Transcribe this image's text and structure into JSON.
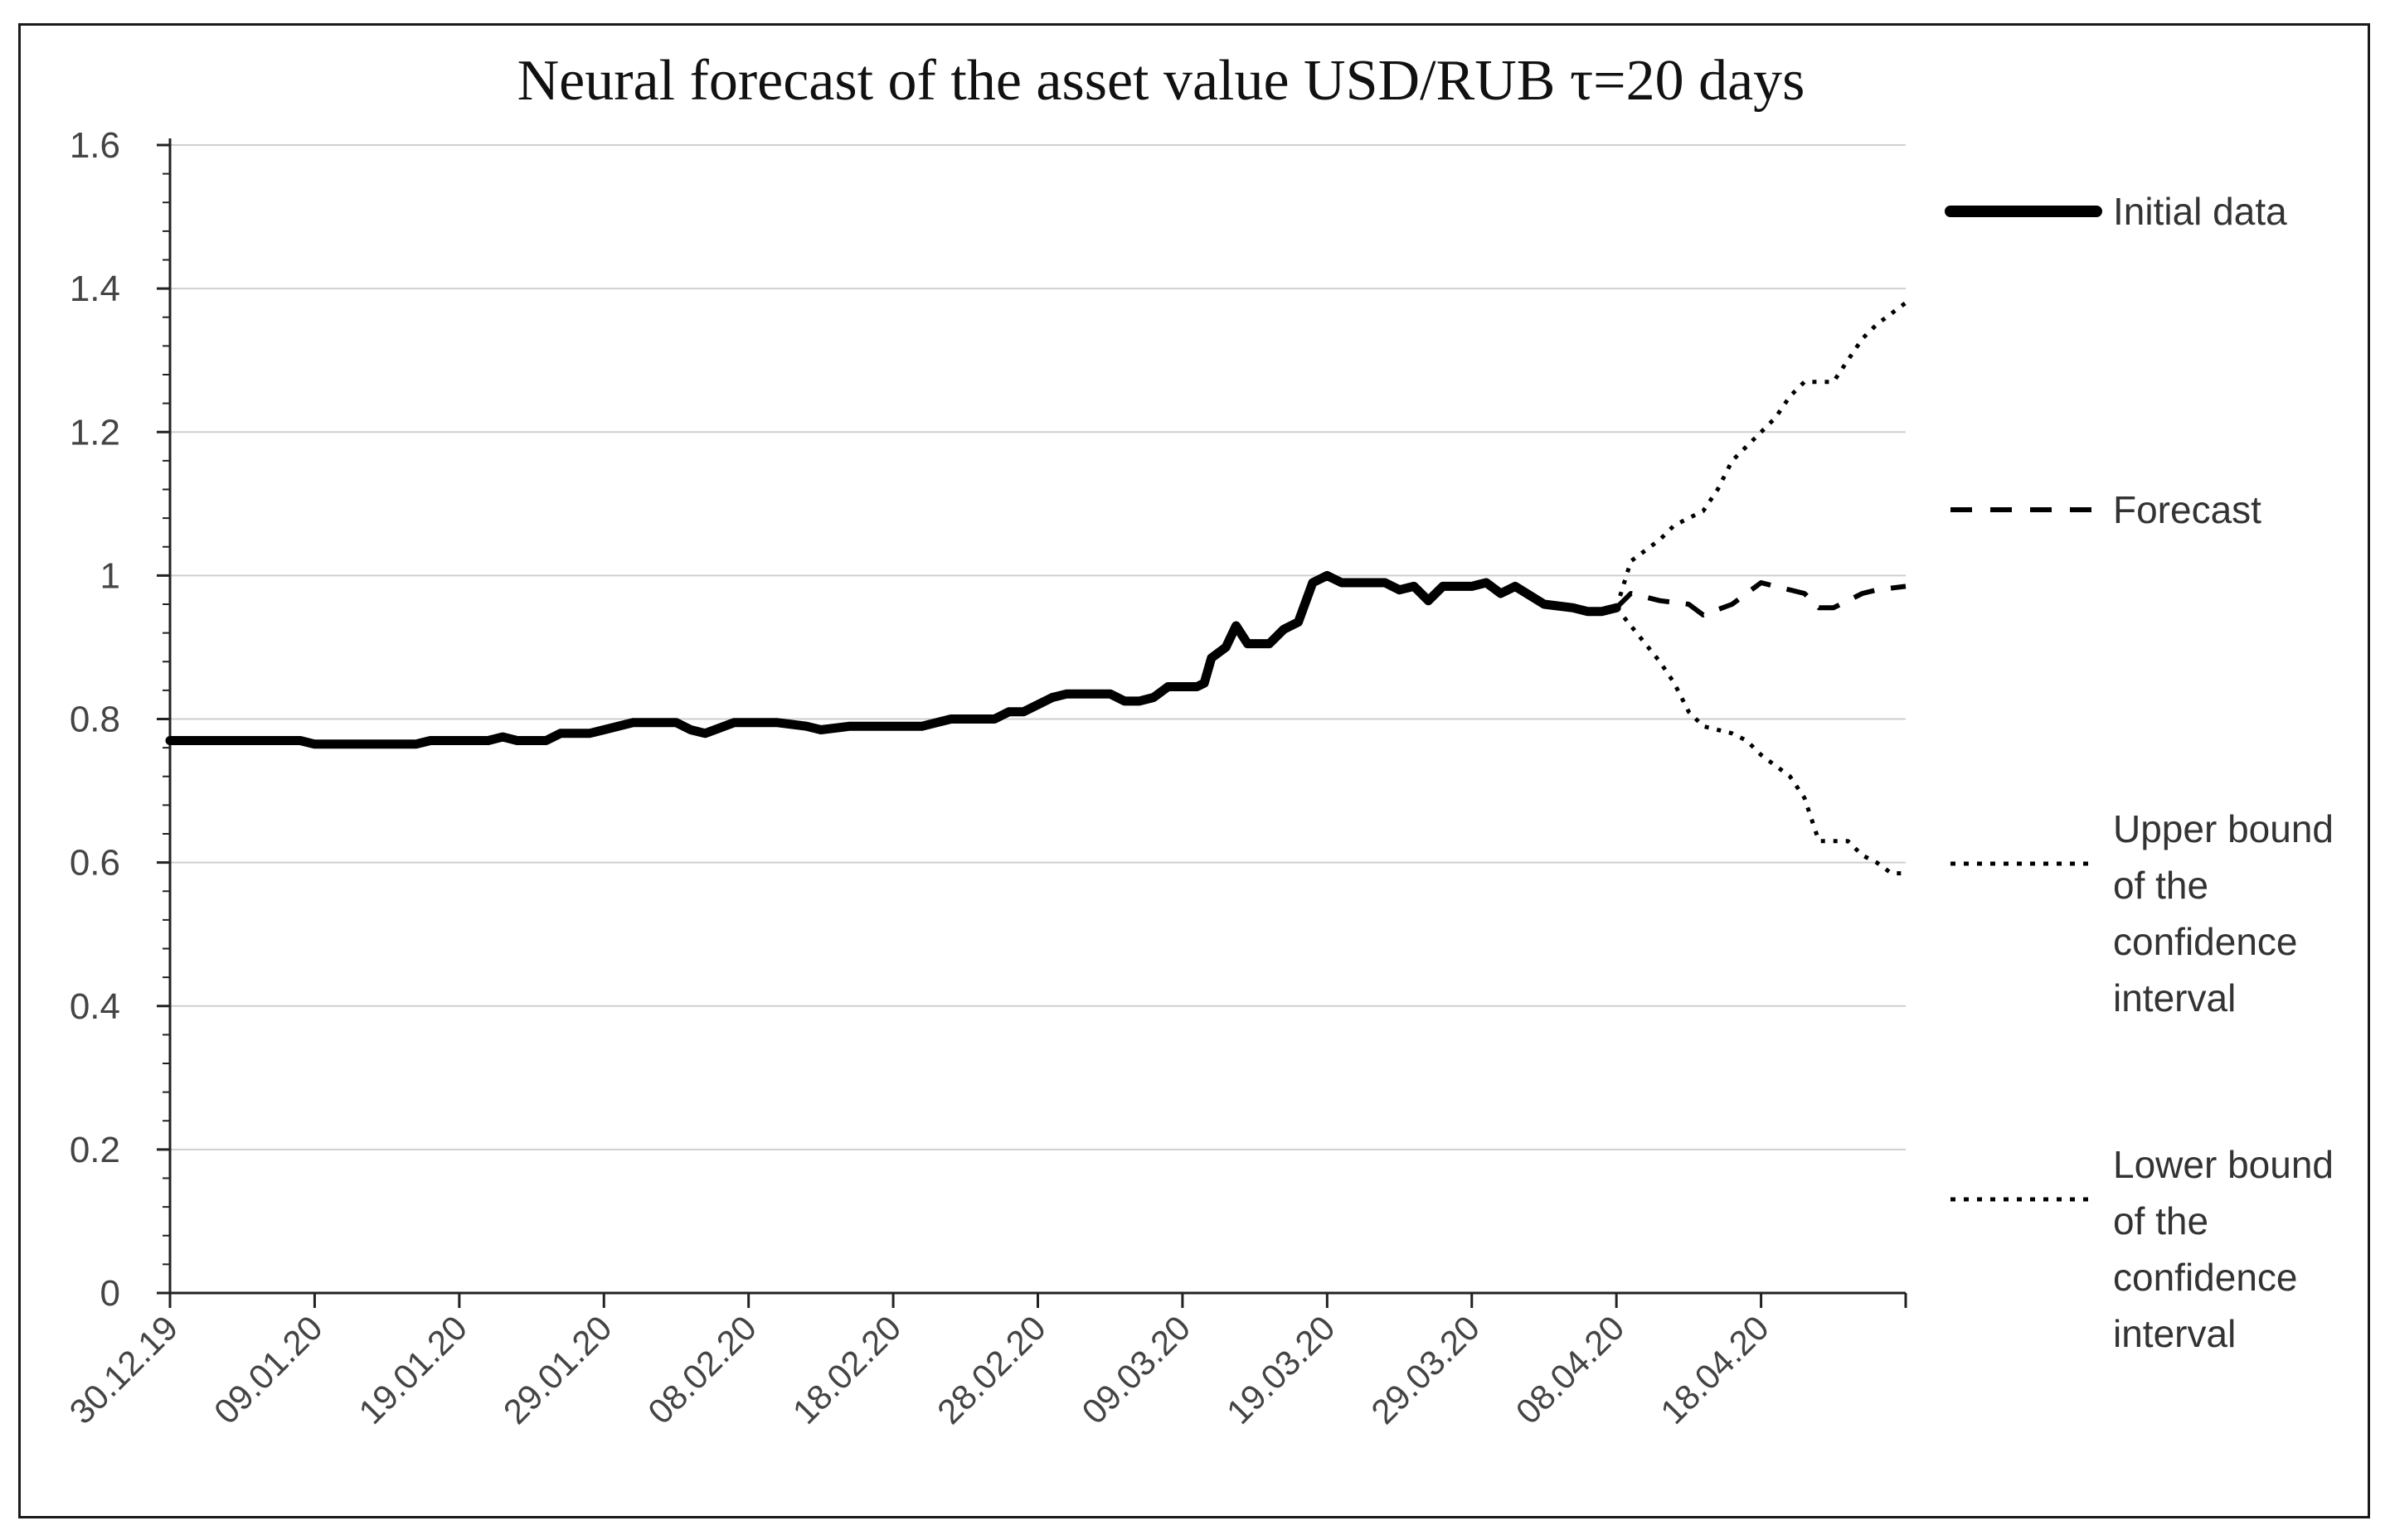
{
  "chart_data": {
    "type": "line",
    "title": "Neural forecast of the asset value  USD/RUB  τ=20 days",
    "xlabel": "",
    "ylabel": "",
    "ylim": [
      0,
      1.6
    ],
    "yticks": [
      "0",
      "0.2",
      "0.4",
      "0.6",
      "0.8",
      "1",
      "1.2",
      "1.4",
      "1.6"
    ],
    "x_days_range": [
      0,
      120
    ],
    "xticks": [
      {
        "day": 0,
        "label": "30.12.19"
      },
      {
        "day": 10,
        "label": "09.01.20"
      },
      {
        "day": 20,
        "label": "19.01.20"
      },
      {
        "day": 30,
        "label": "29.01.20"
      },
      {
        "day": 40,
        "label": "08.02.20"
      },
      {
        "day": 50,
        "label": "18.02.20"
      },
      {
        "day": 60,
        "label": "28.02.20"
      },
      {
        "day": 70,
        "label": "09.03.20"
      },
      {
        "day": 80,
        "label": "19.03.20"
      },
      {
        "day": 90,
        "label": "29.03.20"
      },
      {
        "day": 100,
        "label": "08.04.20"
      },
      {
        "day": 110,
        "label": "18.04.20"
      },
      {
        "day": 120,
        "label": ""
      }
    ],
    "grid": true,
    "legend_position": "right",
    "series": [
      {
        "name": "Initial data",
        "style": "solid-thick",
        "points": [
          [
            0,
            0.77
          ],
          [
            5,
            0.77
          ],
          [
            9,
            0.77
          ],
          [
            10,
            0.765
          ],
          [
            15,
            0.765
          ],
          [
            17,
            0.765
          ],
          [
            18,
            0.77
          ],
          [
            22,
            0.77
          ],
          [
            23,
            0.775
          ],
          [
            24,
            0.77
          ],
          [
            26,
            0.77
          ],
          [
            27,
            0.78
          ],
          [
            29,
            0.78
          ],
          [
            30,
            0.785
          ],
          [
            32,
            0.795
          ],
          [
            35,
            0.795
          ],
          [
            36,
            0.785
          ],
          [
            37,
            0.78
          ],
          [
            39,
            0.795
          ],
          [
            42,
            0.795
          ],
          [
            44,
            0.79
          ],
          [
            45,
            0.785
          ],
          [
            47,
            0.79
          ],
          [
            52,
            0.79
          ],
          [
            53,
            0.795
          ],
          [
            54,
            0.8
          ],
          [
            57,
            0.8
          ],
          [
            58,
            0.81
          ],
          [
            59,
            0.81
          ],
          [
            60,
            0.82
          ],
          [
            61,
            0.83
          ],
          [
            62,
            0.835
          ],
          [
            64,
            0.835
          ],
          [
            65,
            0.835
          ],
          [
            66,
            0.825
          ],
          [
            67,
            0.825
          ],
          [
            68,
            0.83
          ],
          [
            69,
            0.845
          ],
          [
            71,
            0.845
          ],
          [
            71.5,
            0.85
          ],
          [
            72,
            0.885
          ],
          [
            73,
            0.9
          ],
          [
            73.7,
            0.93
          ],
          [
            74.5,
            0.905
          ],
          [
            76,
            0.905
          ],
          [
            77,
            0.925
          ],
          [
            78,
            0.935
          ],
          [
            79,
            0.99
          ],
          [
            80,
            1.0
          ],
          [
            81,
            0.99
          ],
          [
            83,
            0.99
          ],
          [
            84,
            0.99
          ],
          [
            85,
            0.98
          ],
          [
            86,
            0.985
          ],
          [
            87,
            0.965
          ],
          [
            88,
            0.985
          ],
          [
            90,
            0.985
          ],
          [
            91,
            0.99
          ],
          [
            92,
            0.975
          ],
          [
            93,
            0.985
          ],
          [
            95,
            0.96
          ],
          [
            97,
            0.955
          ],
          [
            98,
            0.95
          ],
          [
            99,
            0.95
          ],
          [
            100,
            0.955
          ]
        ]
      },
      {
        "name": "Forecast",
        "style": "dashed",
        "points": [
          [
            100,
            0.955
          ],
          [
            101,
            0.975
          ],
          [
            103,
            0.965
          ],
          [
            105,
            0.96
          ],
          [
            106,
            0.945
          ],
          [
            108,
            0.96
          ],
          [
            110,
            0.99
          ],
          [
            111,
            0.985
          ],
          [
            113,
            0.975
          ],
          [
            114,
            0.955
          ],
          [
            115,
            0.955
          ],
          [
            117,
            0.975
          ],
          [
            118,
            0.98
          ],
          [
            120,
            0.985
          ]
        ]
      },
      {
        "name": "Upper bound of the confidence interval",
        "style": "dotted",
        "points": [
          [
            100,
            0.955
          ],
          [
            101,
            1.02
          ],
          [
            103,
            1.05
          ],
          [
            104,
            1.07
          ],
          [
            106,
            1.09
          ],
          [
            107,
            1.12
          ],
          [
            108,
            1.16
          ],
          [
            110,
            1.2
          ],
          [
            111,
            1.22
          ],
          [
            112,
            1.25
          ],
          [
            113,
            1.27
          ],
          [
            114,
            1.27
          ],
          [
            115,
            1.27
          ],
          [
            116,
            1.3
          ],
          [
            117,
            1.33
          ],
          [
            118,
            1.35
          ],
          [
            120,
            1.38
          ]
        ]
      },
      {
        "name": "Lower bound of the confidence interval",
        "style": "dotted",
        "points": [
          [
            100,
            0.955
          ],
          [
            101,
            0.93
          ],
          [
            103,
            0.88
          ],
          [
            104,
            0.85
          ],
          [
            105,
            0.81
          ],
          [
            106,
            0.79
          ],
          [
            108,
            0.78
          ],
          [
            109,
            0.77
          ],
          [
            110,
            0.75
          ],
          [
            112,
            0.72
          ],
          [
            113,
            0.69
          ],
          [
            114,
            0.63
          ],
          [
            116,
            0.63
          ],
          [
            117,
            0.61
          ],
          [
            118,
            0.6
          ],
          [
            119,
            0.585
          ],
          [
            120,
            0.585
          ]
        ]
      }
    ],
    "legend": [
      {
        "style": "solid-thick",
        "lines": [
          "Initial data"
        ]
      },
      {
        "style": "dashed",
        "lines": [
          "Forecast"
        ]
      },
      {
        "style": "dotted",
        "lines": [
          "Upper bound",
          "of the",
          "confidence",
          "interval"
        ]
      },
      {
        "style": "dotted",
        "lines": [
          "Lower bound",
          "of the",
          "confidence",
          "interval"
        ]
      }
    ]
  }
}
